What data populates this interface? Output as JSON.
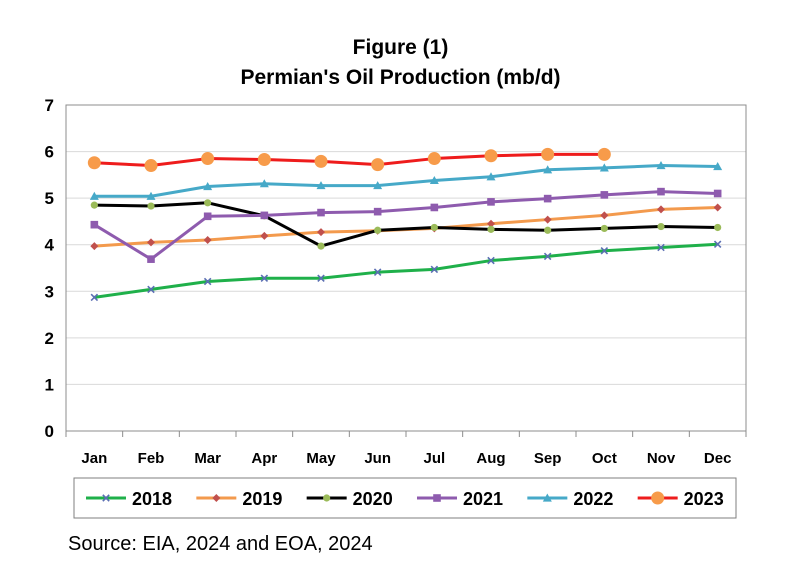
{
  "chart_data": {
    "type": "line",
    "title": "Figure (1)",
    "subtitle": "Permian's Oil Production (mb/d)",
    "xlabel": "",
    "ylabel": "",
    "categories": [
      "Jan",
      "Feb",
      "Mar",
      "Apr",
      "May",
      "Jun",
      "Jul",
      "Aug",
      "Sep",
      "Oct",
      "Nov",
      "Dec"
    ],
    "ylim": [
      0,
      7
    ],
    "yticks": [
      0,
      1,
      2,
      3,
      4,
      5,
      6,
      7
    ],
    "grid": true,
    "legend_position": "bottom",
    "series": [
      {
        "name": "2018",
        "color": "#1fb04a",
        "marker": "x-icon",
        "values": [
          2.87,
          3.04,
          3.21,
          3.28,
          3.28,
          3.41,
          3.47,
          3.66,
          3.75,
          3.87,
          3.94,
          4.01
        ]
      },
      {
        "name": "2019",
        "color": "#f39a4d",
        "marker": "diamond-icon",
        "values": [
          3.97,
          4.05,
          4.1,
          4.19,
          4.27,
          4.3,
          4.35,
          4.45,
          4.54,
          4.63,
          4.76,
          4.8
        ]
      },
      {
        "name": "2020",
        "color": "#000000",
        "marker": "circle-small-icon",
        "values": [
          4.85,
          4.83,
          4.9,
          4.62,
          3.97,
          4.31,
          4.37,
          4.33,
          4.31,
          4.35,
          4.39,
          4.37
        ]
      },
      {
        "name": "2021",
        "color": "#8e5bae",
        "marker": "square-icon",
        "values": [
          4.43,
          3.69,
          4.61,
          4.63,
          4.69,
          4.71,
          4.8,
          4.92,
          4.99,
          5.07,
          5.14,
          5.1
        ]
      },
      {
        "name": "2022",
        "color": "#46a9c8",
        "marker": "triangle-icon",
        "values": [
          5.04,
          5.04,
          5.25,
          5.31,
          5.27,
          5.27,
          5.38,
          5.46,
          5.61,
          5.65,
          5.7,
          5.68
        ]
      },
      {
        "name": "2023",
        "color": "#ee1c1c",
        "marker": "circle-large-icon",
        "marker_color": "#f79b4a",
        "values": [
          5.76,
          5.7,
          5.85,
          5.83,
          5.79,
          5.72,
          5.85,
          5.91,
          5.94,
          5.94,
          null,
          null
        ]
      }
    ]
  },
  "source": "Source: EIA, 2024 and EOA, 2024"
}
